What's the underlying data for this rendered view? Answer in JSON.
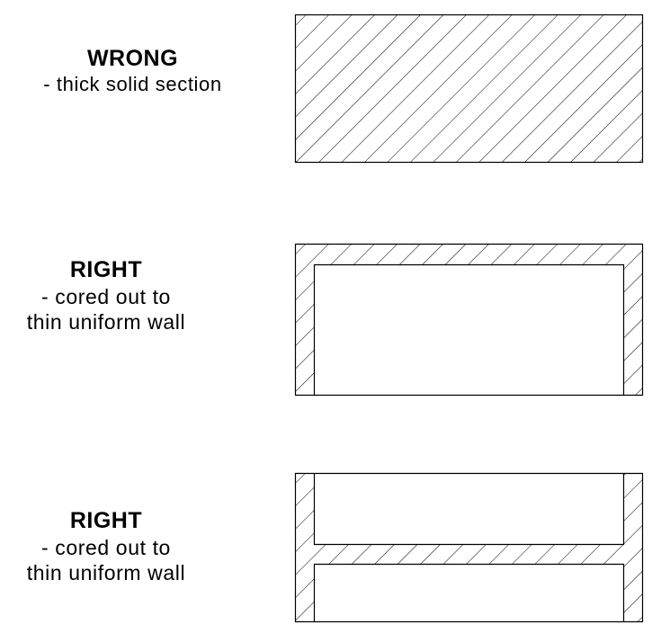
{
  "sections": [
    {
      "id": "wrong",
      "title": "WRONG",
      "lines": [
        "- thick solid section"
      ]
    },
    {
      "id": "right-1",
      "title": "RIGHT",
      "lines": [
        "- cored out to",
        "thin uniform wall"
      ]
    },
    {
      "id": "right-2",
      "title": "RIGHT",
      "lines": [
        "- cored out to",
        "thin uniform wall"
      ]
    }
  ],
  "colors": {
    "ink": "#000000",
    "background": "#ffffff"
  }
}
